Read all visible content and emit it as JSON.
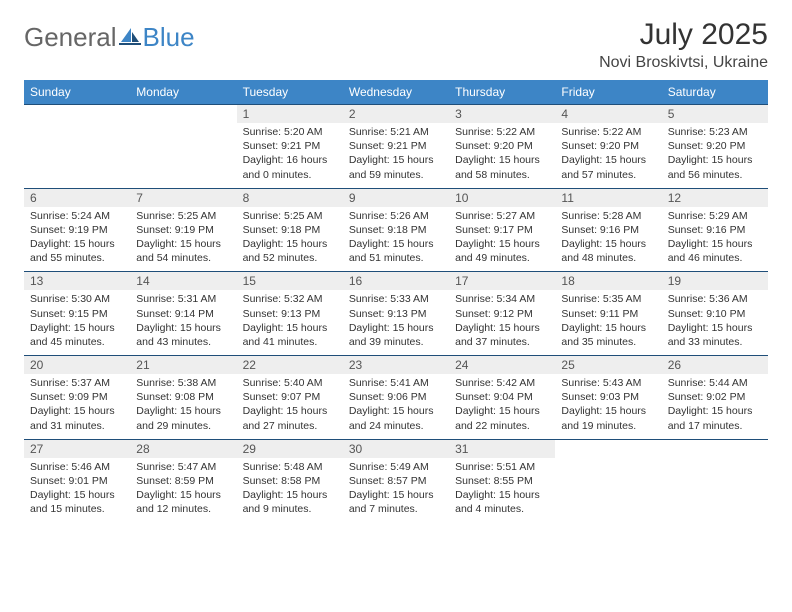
{
  "brand": {
    "part1": "General",
    "part2": "Blue"
  },
  "title": "July 2025",
  "location": "Novi Broskivtsi, Ukraine",
  "colors": {
    "header_bg": "#3d85c6",
    "header_text": "#ffffff",
    "daynum_bg": "#eeeeee",
    "border": "#1f4e79",
    "body_text": "#333333"
  },
  "weekdays": [
    "Sunday",
    "Monday",
    "Tuesday",
    "Wednesday",
    "Thursday",
    "Friday",
    "Saturday"
  ],
  "weeks": [
    [
      null,
      null,
      {
        "d": "1",
        "sr": "Sunrise: 5:20 AM",
        "ss": "Sunset: 9:21 PM",
        "dl1": "Daylight: 16 hours",
        "dl2": "and 0 minutes."
      },
      {
        "d": "2",
        "sr": "Sunrise: 5:21 AM",
        "ss": "Sunset: 9:21 PM",
        "dl1": "Daylight: 15 hours",
        "dl2": "and 59 minutes."
      },
      {
        "d": "3",
        "sr": "Sunrise: 5:22 AM",
        "ss": "Sunset: 9:20 PM",
        "dl1": "Daylight: 15 hours",
        "dl2": "and 58 minutes."
      },
      {
        "d": "4",
        "sr": "Sunrise: 5:22 AM",
        "ss": "Sunset: 9:20 PM",
        "dl1": "Daylight: 15 hours",
        "dl2": "and 57 minutes."
      },
      {
        "d": "5",
        "sr": "Sunrise: 5:23 AM",
        "ss": "Sunset: 9:20 PM",
        "dl1": "Daylight: 15 hours",
        "dl2": "and 56 minutes."
      }
    ],
    [
      {
        "d": "6",
        "sr": "Sunrise: 5:24 AM",
        "ss": "Sunset: 9:19 PM",
        "dl1": "Daylight: 15 hours",
        "dl2": "and 55 minutes."
      },
      {
        "d": "7",
        "sr": "Sunrise: 5:25 AM",
        "ss": "Sunset: 9:19 PM",
        "dl1": "Daylight: 15 hours",
        "dl2": "and 54 minutes."
      },
      {
        "d": "8",
        "sr": "Sunrise: 5:25 AM",
        "ss": "Sunset: 9:18 PM",
        "dl1": "Daylight: 15 hours",
        "dl2": "and 52 minutes."
      },
      {
        "d": "9",
        "sr": "Sunrise: 5:26 AM",
        "ss": "Sunset: 9:18 PM",
        "dl1": "Daylight: 15 hours",
        "dl2": "and 51 minutes."
      },
      {
        "d": "10",
        "sr": "Sunrise: 5:27 AM",
        "ss": "Sunset: 9:17 PM",
        "dl1": "Daylight: 15 hours",
        "dl2": "and 49 minutes."
      },
      {
        "d": "11",
        "sr": "Sunrise: 5:28 AM",
        "ss": "Sunset: 9:16 PM",
        "dl1": "Daylight: 15 hours",
        "dl2": "and 48 minutes."
      },
      {
        "d": "12",
        "sr": "Sunrise: 5:29 AM",
        "ss": "Sunset: 9:16 PM",
        "dl1": "Daylight: 15 hours",
        "dl2": "and 46 minutes."
      }
    ],
    [
      {
        "d": "13",
        "sr": "Sunrise: 5:30 AM",
        "ss": "Sunset: 9:15 PM",
        "dl1": "Daylight: 15 hours",
        "dl2": "and 45 minutes."
      },
      {
        "d": "14",
        "sr": "Sunrise: 5:31 AM",
        "ss": "Sunset: 9:14 PM",
        "dl1": "Daylight: 15 hours",
        "dl2": "and 43 minutes."
      },
      {
        "d": "15",
        "sr": "Sunrise: 5:32 AM",
        "ss": "Sunset: 9:13 PM",
        "dl1": "Daylight: 15 hours",
        "dl2": "and 41 minutes."
      },
      {
        "d": "16",
        "sr": "Sunrise: 5:33 AM",
        "ss": "Sunset: 9:13 PM",
        "dl1": "Daylight: 15 hours",
        "dl2": "and 39 minutes."
      },
      {
        "d": "17",
        "sr": "Sunrise: 5:34 AM",
        "ss": "Sunset: 9:12 PM",
        "dl1": "Daylight: 15 hours",
        "dl2": "and 37 minutes."
      },
      {
        "d": "18",
        "sr": "Sunrise: 5:35 AM",
        "ss": "Sunset: 9:11 PM",
        "dl1": "Daylight: 15 hours",
        "dl2": "and 35 minutes."
      },
      {
        "d": "19",
        "sr": "Sunrise: 5:36 AM",
        "ss": "Sunset: 9:10 PM",
        "dl1": "Daylight: 15 hours",
        "dl2": "and 33 minutes."
      }
    ],
    [
      {
        "d": "20",
        "sr": "Sunrise: 5:37 AM",
        "ss": "Sunset: 9:09 PM",
        "dl1": "Daylight: 15 hours",
        "dl2": "and 31 minutes."
      },
      {
        "d": "21",
        "sr": "Sunrise: 5:38 AM",
        "ss": "Sunset: 9:08 PM",
        "dl1": "Daylight: 15 hours",
        "dl2": "and 29 minutes."
      },
      {
        "d": "22",
        "sr": "Sunrise: 5:40 AM",
        "ss": "Sunset: 9:07 PM",
        "dl1": "Daylight: 15 hours",
        "dl2": "and 27 minutes."
      },
      {
        "d": "23",
        "sr": "Sunrise: 5:41 AM",
        "ss": "Sunset: 9:06 PM",
        "dl1": "Daylight: 15 hours",
        "dl2": "and 24 minutes."
      },
      {
        "d": "24",
        "sr": "Sunrise: 5:42 AM",
        "ss": "Sunset: 9:04 PM",
        "dl1": "Daylight: 15 hours",
        "dl2": "and 22 minutes."
      },
      {
        "d": "25",
        "sr": "Sunrise: 5:43 AM",
        "ss": "Sunset: 9:03 PM",
        "dl1": "Daylight: 15 hours",
        "dl2": "and 19 minutes."
      },
      {
        "d": "26",
        "sr": "Sunrise: 5:44 AM",
        "ss": "Sunset: 9:02 PM",
        "dl1": "Daylight: 15 hours",
        "dl2": "and 17 minutes."
      }
    ],
    [
      {
        "d": "27",
        "sr": "Sunrise: 5:46 AM",
        "ss": "Sunset: 9:01 PM",
        "dl1": "Daylight: 15 hours",
        "dl2": "and 15 minutes."
      },
      {
        "d": "28",
        "sr": "Sunrise: 5:47 AM",
        "ss": "Sunset: 8:59 PM",
        "dl1": "Daylight: 15 hours",
        "dl2": "and 12 minutes."
      },
      {
        "d": "29",
        "sr": "Sunrise: 5:48 AM",
        "ss": "Sunset: 8:58 PM",
        "dl1": "Daylight: 15 hours",
        "dl2": "and 9 minutes."
      },
      {
        "d": "30",
        "sr": "Sunrise: 5:49 AM",
        "ss": "Sunset: 8:57 PM",
        "dl1": "Daylight: 15 hours",
        "dl2": "and 7 minutes."
      },
      {
        "d": "31",
        "sr": "Sunrise: 5:51 AM",
        "ss": "Sunset: 8:55 PM",
        "dl1": "Daylight: 15 hours",
        "dl2": "and 4 minutes."
      },
      null,
      null
    ]
  ]
}
